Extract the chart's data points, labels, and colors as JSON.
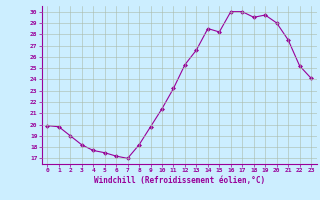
{
  "x": [
    0,
    1,
    2,
    3,
    4,
    5,
    6,
    7,
    8,
    9,
    10,
    11,
    12,
    13,
    14,
    15,
    16,
    17,
    18,
    19,
    20,
    21,
    22,
    23
  ],
  "y": [
    19.9,
    19.8,
    19.0,
    18.2,
    17.7,
    17.5,
    17.2,
    17.0,
    18.2,
    19.8,
    21.4,
    23.2,
    25.3,
    26.6,
    28.5,
    28.2,
    30.0,
    30.0,
    29.5,
    29.7,
    29.0,
    27.5,
    25.2,
    24.1
  ],
  "line_color": "#990099",
  "marker": "D",
  "marker_size": 2,
  "bg_color": "#cceeff",
  "grid_color": "#aabbaa",
  "xlabel": "Windchill (Refroidissement éolien,°C)",
  "ylabel_ticks": [
    17,
    18,
    19,
    20,
    21,
    22,
    23,
    24,
    25,
    26,
    27,
    28,
    29,
    30
  ],
  "xlim": [
    -0.5,
    23.5
  ],
  "ylim": [
    16.5,
    30.5
  ]
}
